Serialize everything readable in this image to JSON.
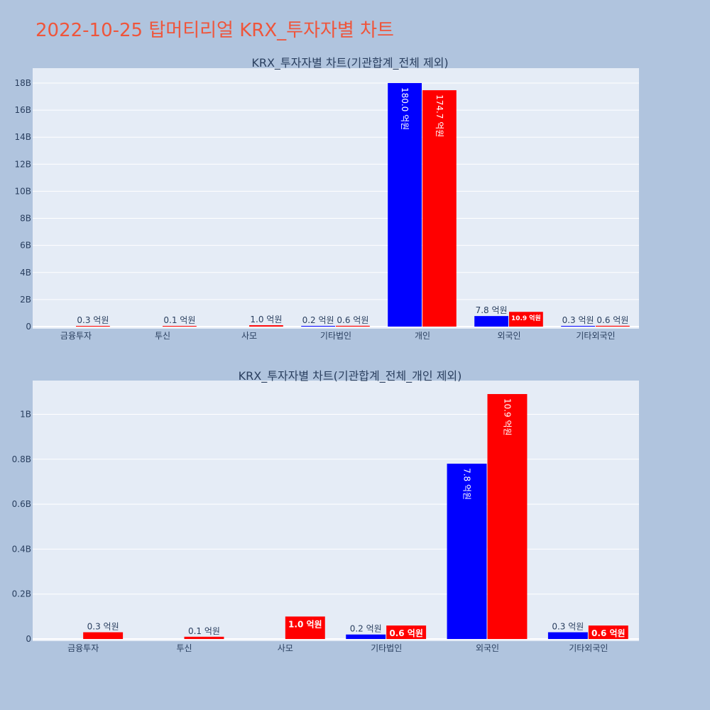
{
  "page": {
    "title": "2022-10-25 탑머티리얼 KRX_투자자별 차트"
  },
  "chart_data": [
    {
      "type": "bar",
      "title": "KRX_투자자별 차트(기관합계_전체 제외)",
      "categories": [
        "금융투자",
        "투신",
        "사모",
        "기타법인",
        "개인",
        "외국인",
        "기타외국인"
      ],
      "series": [
        {
          "color": "#0000ff",
          "values": [
            0,
            0,
            0,
            0.02,
            18.0,
            0.78,
            0.03
          ],
          "labels": [
            "",
            "",
            "",
            "0.2 억원",
            "180.0 억원",
            "7.8 억원",
            "0.3 억원"
          ]
        },
        {
          "color": "#ff0000",
          "values": [
            0.03,
            0.01,
            0.1,
            0.06,
            17.47,
            1.09,
            0.06
          ],
          "labels": [
            "0.3 억원",
            "0.1 억원",
            "1.0 억원",
            "0.6 억원",
            "174.7 억원",
            "10.9 억원",
            "0.6 억원"
          ]
        }
      ],
      "ylim": [
        0,
        19.1
      ],
      "yticks": [
        0,
        2,
        4,
        6,
        8,
        10,
        12,
        14,
        16,
        18
      ],
      "ytick_labels": [
        "0",
        "2B",
        "4B",
        "6B",
        "8B",
        "10B",
        "12B",
        "14B",
        "16B",
        "18B"
      ],
      "grid": true
    },
    {
      "type": "bar",
      "title": "KRX_투자자별 차트(기관합계_전체_개인 제외)",
      "categories": [
        "금융투자",
        "투신",
        "사모",
        "기타법인",
        "외국인",
        "기타외국인"
      ],
      "series": [
        {
          "color": "#0000ff",
          "values": [
            0,
            0,
            0,
            0.02,
            0.78,
            0.03
          ],
          "labels": [
            "",
            "",
            "",
            "0.2 억원",
            "7.8 억원",
            "0.3 억원"
          ]
        },
        {
          "color": "#ff0000",
          "values": [
            0.03,
            0.01,
            0.1,
            0.06,
            1.09,
            0.06
          ],
          "labels": [
            "0.3 억원",
            "0.1 억원",
            "1.0 억원",
            "0.6 억원",
            "10.9 억원",
            "0.6 억원"
          ]
        }
      ],
      "ylim": [
        0,
        1.15
      ],
      "yticks": [
        0,
        0.2,
        0.4,
        0.6,
        0.8,
        1.0
      ],
      "ytick_labels": [
        "0",
        "0.2B",
        "0.4B",
        "0.6B",
        "0.8B",
        "1B"
      ],
      "grid": true
    }
  ]
}
